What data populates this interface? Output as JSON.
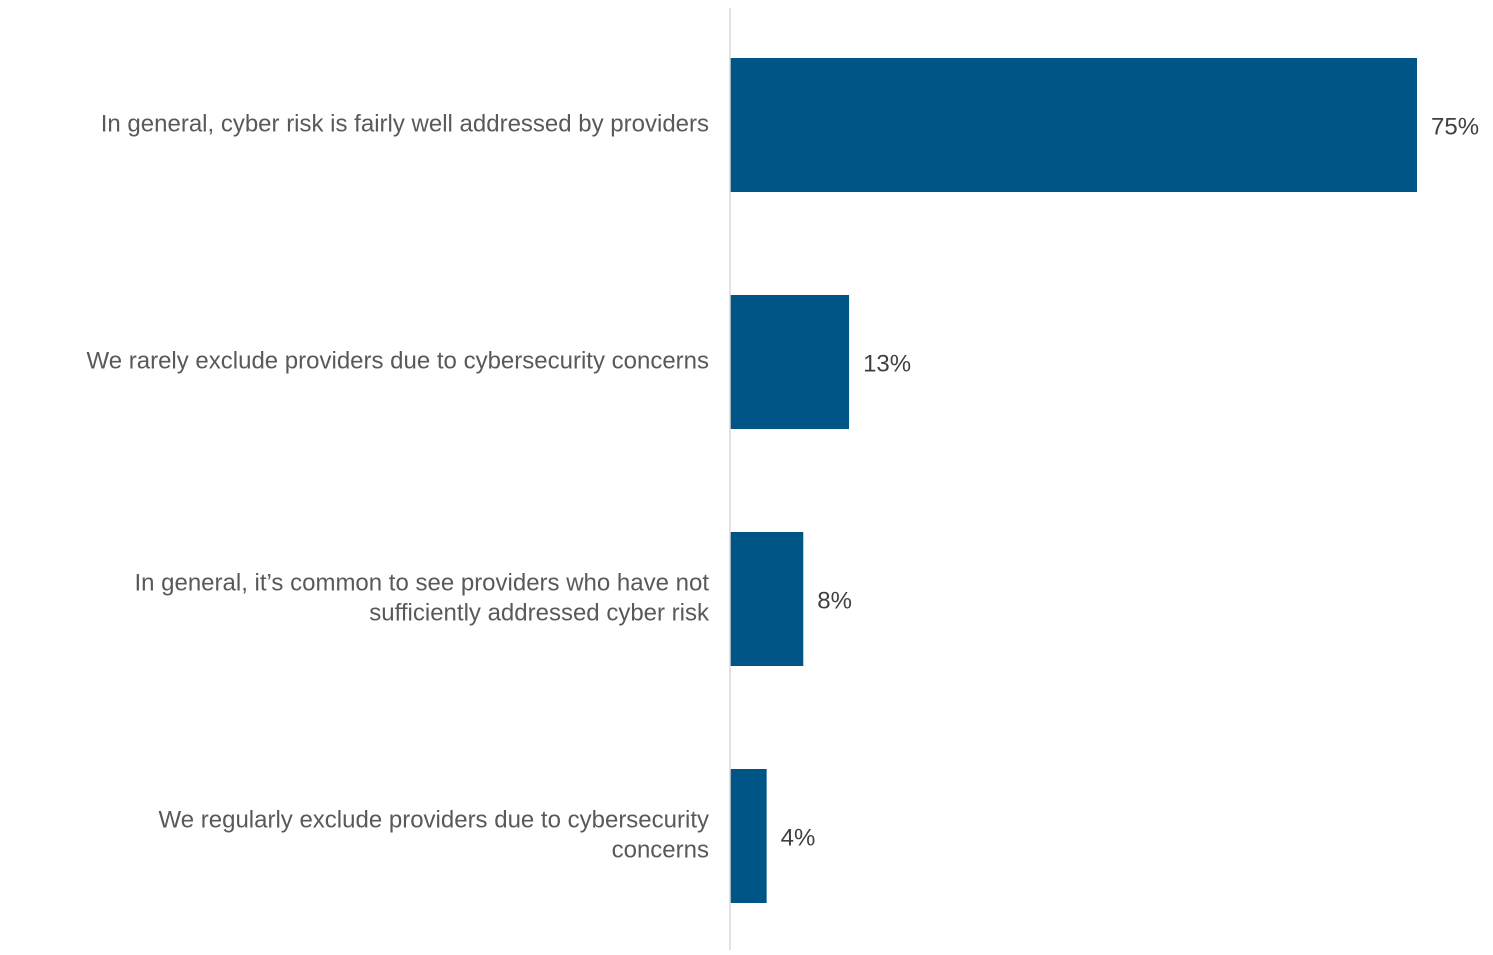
{
  "colors": {
    "bar": "#005587",
    "label_text": "#595959",
    "value_text": "#404040",
    "axis_line": "#d9d9d9",
    "background": "#ffffff"
  },
  "chart_data": {
    "type": "bar",
    "orientation": "horizontal",
    "title": "",
    "xlabel": "",
    "ylabel": "",
    "xlim": [
      0,
      75
    ],
    "grid": false,
    "legend": "none",
    "value_format": "percent",
    "categories": [
      "In general, cyber risk is fairly well addressed by providers",
      "We rarely exclude providers due to cybersecurity concerns",
      "In general, it’s common to see providers who have not sufficiently addressed cyber risk",
      "We regularly exclude providers due to cybersecurity concerns"
    ],
    "category_label_lines": [
      [
        "In general, cyber risk is fairly well addressed by providers"
      ],
      [
        "We rarely exclude providers due to cybersecurity concerns"
      ],
      [
        "In general, it’s common to see providers who have not",
        "sufficiently addressed cyber risk"
      ],
      [
        "We regularly exclude providers due to cybersecurity",
        "concerns"
      ]
    ],
    "values": [
      75,
      13,
      8,
      4
    ],
    "data_labels": [
      "75%",
      "13%",
      "8%",
      "4%"
    ]
  }
}
